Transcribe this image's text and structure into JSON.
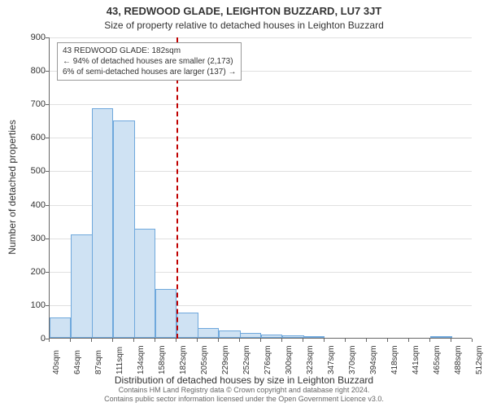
{
  "title": "43, REDWOOD GLADE, LEIGHTON BUZZARD, LU7 3JT",
  "subtitle": "Size of property relative to detached houses in Leighton Buzzard",
  "y_axis_label": "Number of detached properties",
  "x_axis_label": "Distribution of detached houses by size in Leighton Buzzard",
  "footer_line1": "Contains HM Land Registry data © Crown copyright and database right 2024.",
  "footer_line2": "Contains public sector information licensed under the Open Government Licence v3.0.",
  "annotation": {
    "line1": "43 REDWOOD GLADE: 182sqm",
    "line2": "← 94% of detached houses are smaller (2,173)",
    "line3": "6% of semi-detached houses are larger (137) →"
  },
  "chart": {
    "type": "bar",
    "xlim_values": [
      40,
      512
    ],
    "ylim": [
      0,
      900
    ],
    "ytick_step": 100,
    "yticks": [
      0,
      100,
      200,
      300,
      400,
      500,
      600,
      700,
      800,
      900
    ],
    "x_tick_labels": [
      "40sqm",
      "64sqm",
      "87sqm",
      "111sqm",
      "134sqm",
      "158sqm",
      "182sqm",
      "205sqm",
      "229sqm",
      "252sqm",
      "276sqm",
      "300sqm",
      "323sqm",
      "347sqm",
      "370sqm",
      "394sqm",
      "418sqm",
      "441sqm",
      "465sqm",
      "488sqm",
      "512sqm"
    ],
    "x_tick_values": [
      40,
      64,
      87,
      111,
      134,
      158,
      182,
      205,
      229,
      252,
      276,
      300,
      323,
      347,
      370,
      394,
      418,
      441,
      465,
      488,
      512
    ],
    "bars": [
      {
        "x": 40,
        "v": 60
      },
      {
        "x": 64,
        "v": 310
      },
      {
        "x": 87,
        "v": 685
      },
      {
        "x": 111,
        "v": 650
      },
      {
        "x": 134,
        "v": 325
      },
      {
        "x": 158,
        "v": 145
      },
      {
        "x": 182,
        "v": 75
      },
      {
        "x": 205,
        "v": 30
      },
      {
        "x": 229,
        "v": 22
      },
      {
        "x": 252,
        "v": 14
      },
      {
        "x": 276,
        "v": 10
      },
      {
        "x": 300,
        "v": 8
      },
      {
        "x": 323,
        "v": 6
      },
      {
        "x": 347,
        "v": 0
      },
      {
        "x": 370,
        "v": 0
      },
      {
        "x": 394,
        "v": 0
      },
      {
        "x": 418,
        "v": 0
      },
      {
        "x": 441,
        "v": 0
      },
      {
        "x": 465,
        "v": 3
      },
      {
        "x": 488,
        "v": 0
      }
    ],
    "bar_fill": "#cfe2f3",
    "bar_border": "#6fa8dc",
    "marker_value": 182,
    "marker_color": "#c00000",
    "grid_color": "#e0e0e0",
    "axis_color": "#666666",
    "title_fontsize": 13,
    "subtitle_fontsize": 12,
    "label_fontsize": 12,
    "tick_fontsize": 11,
    "xtick_fontsize": 10,
    "annotation_fontsize": 10,
    "footer_fontsize": 9,
    "background_color": "#ffffff"
  }
}
